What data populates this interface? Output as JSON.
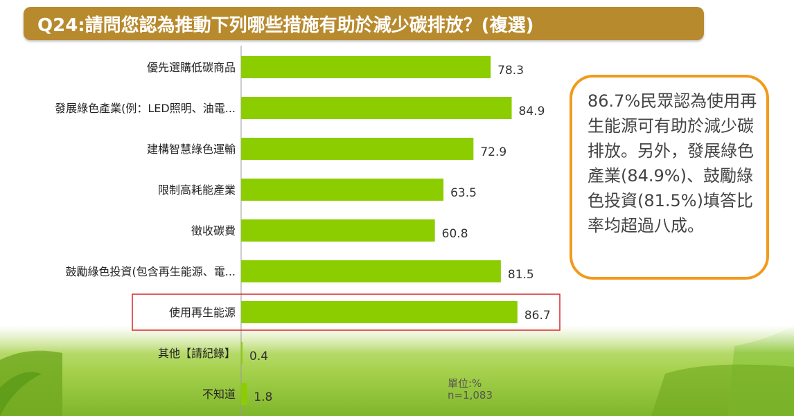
{
  "title": "Q24:請問您認為推動下列哪些措施有助於減少碳排放？(複選)",
  "callout": "86.7%民眾認為使用再生能源可有助於減少碳排放。另外，發展綠色產業(84.9%)、鼓勵綠色投資(81.5%)填答比率均超過八成。",
  "unit_note": {
    "unit": "單位:%",
    "sample": "n=1,083"
  },
  "colors": {
    "bar": "#8ccd00",
    "title_bg": "#b88a2e",
    "callout_border": "#f29a1c",
    "highlight_border": "#d9262b"
  },
  "chart_data": {
    "type": "bar",
    "orientation": "horizontal",
    "categories": [
      "優先選購低碳商品",
      "發展綠色產業(例：LED照明、油電...",
      "建構智慧綠色運輸",
      "限制高耗能產業",
      "徵收碳費",
      "鼓勵綠色投資(包含再生能源、電...",
      "使用再生能源",
      "其他【請紀錄】",
      "不知道"
    ],
    "values": [
      78.3,
      84.9,
      72.9,
      63.5,
      60.8,
      81.5,
      86.7,
      0.4,
      1.8
    ],
    "value_labels": [
      "78.3",
      "84.9",
      "72.9",
      "63.5",
      "60.8",
      "81.5",
      "86.7",
      "0.4",
      "1.8"
    ],
    "highlighted_category": "使用再生能源",
    "xlim": [
      0,
      100
    ],
    "grid": false
  }
}
